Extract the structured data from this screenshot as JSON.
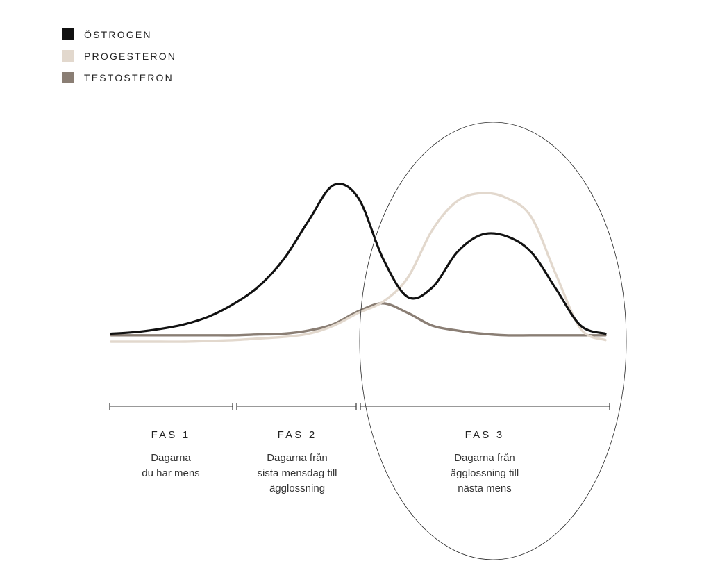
{
  "chart_data": {
    "type": "line",
    "x": [
      0,
      5,
      10,
      15,
      20,
      25,
      30,
      35,
      40,
      45,
      50,
      55,
      60,
      65,
      70,
      75,
      80,
      85,
      90,
      95,
      100
    ],
    "xlim": [
      0,
      100
    ],
    "ylim": [
      0,
      100
    ],
    "series": [
      {
        "name": "ÖSTROGEN",
        "color": "#111111",
        "values": [
          5,
          6,
          8,
          11,
          16,
          24,
          35,
          52,
          76,
          98,
          90,
          52,
          28,
          34,
          56,
          67,
          66,
          56,
          33,
          10,
          5
        ]
      },
      {
        "name": "PROGESTERON",
        "color": "#e2d8cd",
        "values": [
          0,
          0,
          0,
          0,
          0.5,
          1,
          2,
          3,
          5,
          10,
          18,
          25,
          40,
          70,
          88,
          93,
          90,
          78,
          42,
          8,
          1
        ]
      },
      {
        "name": "TESTOSTERON",
        "color": "#8a7e74",
        "values": [
          4,
          4,
          4,
          4,
          4,
          4,
          4.5,
          5,
          7,
          11,
          19,
          24,
          18,
          10,
          7,
          5,
          4,
          4,
          4,
          4,
          4
        ]
      }
    ],
    "phase_bounds": [
      0,
      25,
      50,
      100
    ],
    "phases": [
      {
        "title": "FAS 1",
        "desc": "Dagarna\ndu har mens"
      },
      {
        "title": "FAS 2",
        "desc": "Dagarna från\nsista mensdag till\nägglossning"
      },
      {
        "title": "FAS 3",
        "desc": "Dagarna från\nägglossning till\nnästa mens"
      }
    ],
    "highlight": "FAS 3",
    "grid": false,
    "legend": "top-left"
  }
}
